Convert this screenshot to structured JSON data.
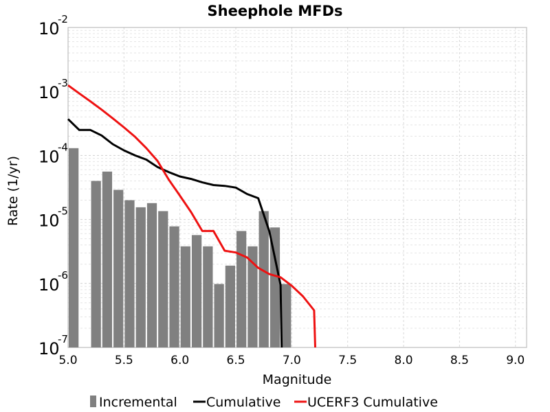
{
  "chart_data": {
    "type": "bar",
    "title": "Sheephole MFDs",
    "xlabel": "Magnitude",
    "ylabel": "Rate (1/yr)",
    "xlim": [
      5.0,
      9.1
    ],
    "ylim": [
      1e-07,
      0.01
    ],
    "y_scale": "log",
    "grid": true,
    "legend_position": "bottom",
    "x_ticks": [
      "5.0",
      "5.5",
      "6.0",
      "6.5",
      "7.0",
      "7.5",
      "8.0",
      "8.5",
      "9.0"
    ],
    "y_ticks": [
      {
        "base": "10",
        "exp": "-7"
      },
      {
        "base": "10",
        "exp": "-6"
      },
      {
        "base": "10",
        "exp": "-5"
      },
      {
        "base": "10",
        "exp": "-4"
      },
      {
        "base": "10",
        "exp": "-3"
      },
      {
        "base": "10",
        "exp": "-2"
      }
    ],
    "series": [
      {
        "name": "Incremental",
        "kind": "bar",
        "color": "#808080",
        "x": [
          5.05,
          5.25,
          5.35,
          5.45,
          5.55,
          5.65,
          5.75,
          5.85,
          5.95,
          6.05,
          6.15,
          6.25,
          6.35,
          6.45,
          6.55,
          6.65,
          6.75,
          6.85,
          6.95
        ],
        "values": [
          0.00013,
          4e-05,
          5.6e-05,
          2.9e-05,
          2e-05,
          1.55e-05,
          1.8e-05,
          1.35e-05,
          7.8e-06,
          3.8e-06,
          5.7e-06,
          3.8e-06,
          9.8e-07,
          1.9e-06,
          6.6e-06,
          3.8e-06,
          1.35e-05,
          7.5e-06,
          9.8e-07
        ]
      },
      {
        "name": "Cumulative",
        "kind": "line",
        "color": "#000000",
        "x": [
          5.0,
          5.1,
          5.2,
          5.3,
          5.4,
          5.5,
          5.6,
          5.7,
          5.8,
          5.9,
          6.0,
          6.1,
          6.2,
          6.3,
          6.4,
          6.5,
          6.6,
          6.7,
          6.8,
          6.9,
          6.91
        ],
        "values": [
          0.00037,
          0.00025,
          0.00025,
          0.000205,
          0.00015,
          0.00012,
          0.0001,
          8.6e-05,
          6.6e-05,
          5.5e-05,
          4.7e-05,
          4.3e-05,
          3.8e-05,
          3.45e-05,
          3.35e-05,
          3.15e-05,
          2.5e-05,
          2.15e-05,
          6.5e-06,
          9.5e-07,
          1e-07
        ]
      },
      {
        "name": "UCERF3 Cumulative",
        "kind": "line",
        "color": "#ee1111",
        "x": [
          5.0,
          5.1,
          5.2,
          5.3,
          5.4,
          5.5,
          5.6,
          5.7,
          5.8,
          5.9,
          6.0,
          6.1,
          6.2,
          6.3,
          6.4,
          6.5,
          6.6,
          6.7,
          6.8,
          6.9,
          7.0,
          7.1,
          7.2,
          7.21
        ],
        "values": [
          0.00125,
          0.00093,
          0.0007,
          0.00052,
          0.00038,
          0.000275,
          0.000195,
          0.00013,
          8.2e-05,
          4.2e-05,
          2.35e-05,
          1.3e-05,
          6.6e-06,
          6.6e-06,
          3.25e-06,
          3.05e-06,
          2.55e-06,
          1.75e-06,
          1.4e-06,
          1.25e-06,
          9.2e-07,
          6.3e-07,
          3.8e-07,
          1e-07
        ]
      }
    ]
  }
}
